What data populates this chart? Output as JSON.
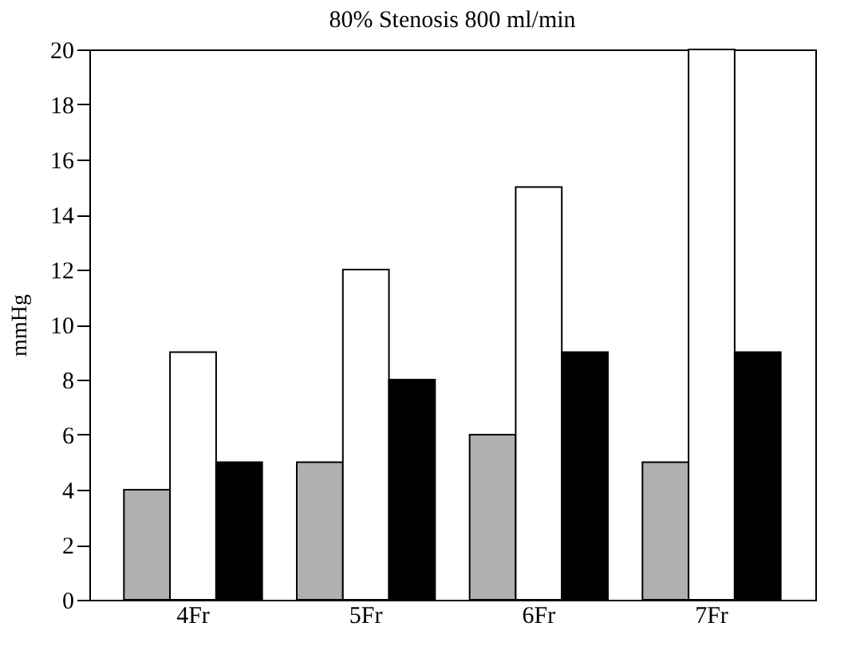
{
  "chart_data": {
    "type": "bar",
    "title": "80% Stenosis   800 ml/min",
    "ylabel": "mmHg",
    "categories": [
      "4Fr",
      "5Fr",
      "6Fr",
      "7Fr"
    ],
    "series": [
      {
        "color": "#b0b0b0",
        "values": [
          4,
          5,
          6,
          5
        ]
      },
      {
        "color": "#ffffff",
        "values": [
          9,
          12,
          15,
          20
        ]
      },
      {
        "color": "#000000",
        "values": [
          5,
          8,
          9,
          9
        ]
      }
    ],
    "ylim": [
      0,
      20
    ],
    "yticks": [
      0,
      2,
      4,
      6,
      8,
      10,
      12,
      14,
      16,
      18,
      20
    ],
    "grid": false
  }
}
